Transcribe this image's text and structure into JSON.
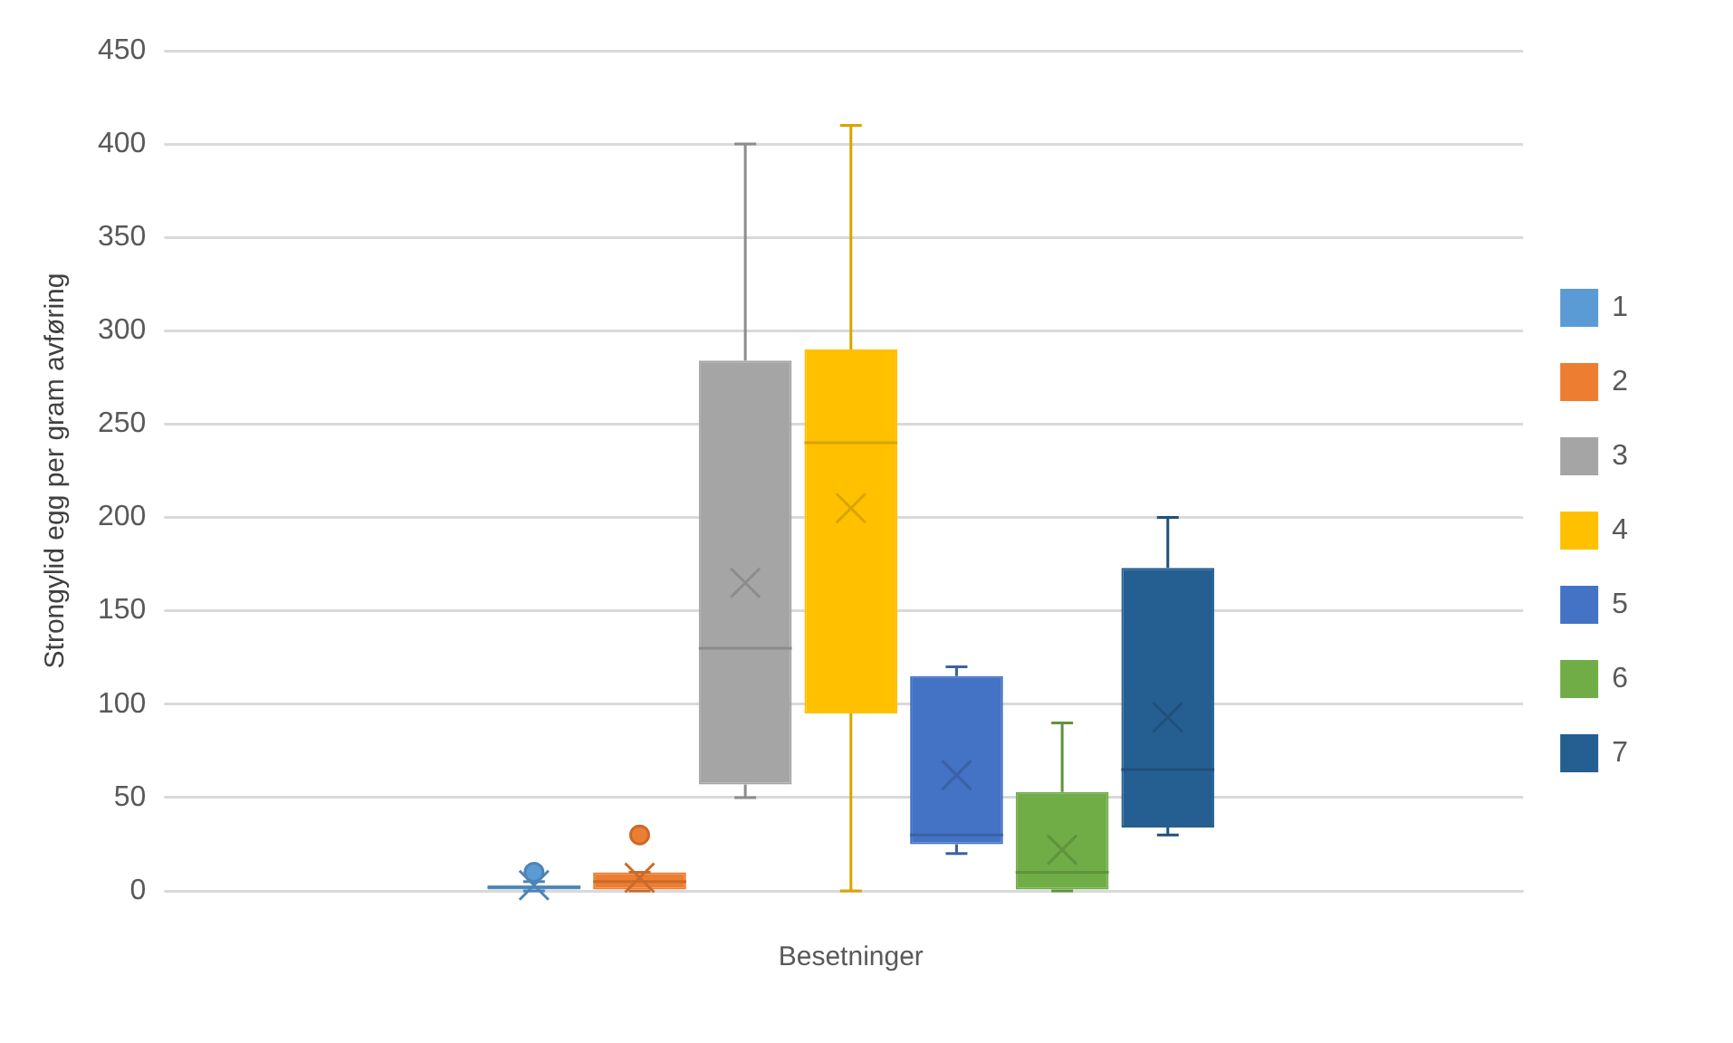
{
  "chart_data": {
    "type": "box",
    "categories": [
      "Besetninger"
    ],
    "ylabel": "Strongylid egg per gram avføring",
    "ylim": [
      0,
      450
    ],
    "yticks": [
      0,
      50,
      100,
      150,
      200,
      250,
      300,
      350,
      400,
      450
    ],
    "grid": "y",
    "legend": "right",
    "series": [
      {
        "name": "1",
        "color": "#5b9bd5",
        "boxes": [
          {
            "low": 0,
            "q1": 0,
            "median": 2,
            "q3": 3,
            "high": 5,
            "mean": 3,
            "outliers": [
              10
            ]
          }
        ]
      },
      {
        "name": "2",
        "color": "#ed7d31",
        "boxes": [
          {
            "low": 0,
            "q1": 0,
            "median": 5,
            "q3": 10,
            "high": 10,
            "mean": 7,
            "outliers": [
              30
            ]
          }
        ]
      },
      {
        "name": "3",
        "color": "#a5a5a5",
        "boxes": [
          {
            "low": 50,
            "q1": 57,
            "median": 130,
            "q3": 284,
            "high": 400,
            "mean": 165
          }
        ]
      },
      {
        "name": "4",
        "color": "#ffc000",
        "boxes": [
          {
            "low": 0,
            "q1": 95,
            "median": 240,
            "q3": 290,
            "high": 410,
            "mean": 205
          }
        ]
      },
      {
        "name": "5",
        "color": "#4472c4",
        "boxes": [
          {
            "low": 20,
            "q1": 25,
            "median": 30,
            "q3": 115,
            "high": 120,
            "mean": 62
          }
        ]
      },
      {
        "name": "6",
        "color": "#70ad47",
        "boxes": [
          {
            "low": 0,
            "q1": 0,
            "median": 10,
            "q3": 53,
            "high": 90,
            "mean": 22
          }
        ]
      },
      {
        "name": "7",
        "color": "#255e91",
        "boxes": [
          {
            "low": 30,
            "q1": 34,
            "median": 65,
            "q3": 173,
            "high": 200,
            "mean": 93
          }
        ]
      }
    ]
  }
}
